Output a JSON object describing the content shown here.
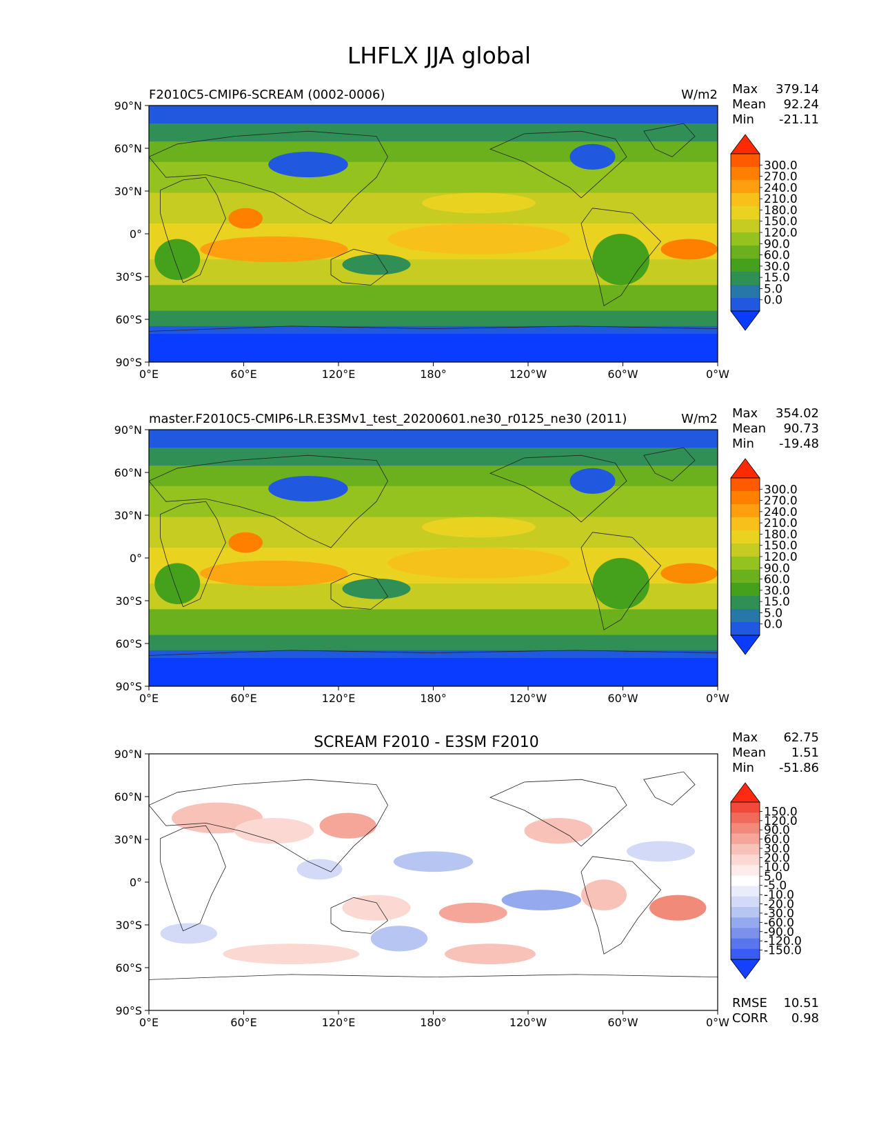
{
  "title": "LHFLX JJA global",
  "x_ticks": [
    "0°E",
    "60°E",
    "120°E",
    "180°",
    "120°W",
    "60°W",
    "0°W"
  ],
  "y_ticks": [
    "90°N",
    "60°N",
    "30°N",
    "0°",
    "30°S",
    "60°S",
    "90°S"
  ],
  "panels": [
    {
      "left_title": "F2010C5-CMIP6-SCREAM (0002-0006)",
      "center_title": "",
      "right_title": "W/m2",
      "stats": [
        {
          "label": "Max",
          "value": "379.14"
        },
        {
          "label": "Mean",
          "value": "92.24"
        },
        {
          "label": "Min",
          "value": "-21.11"
        }
      ],
      "colorbar_labels": [
        "300.0",
        "270.0",
        "240.0",
        "210.0",
        "180.0",
        "150.0",
        "120.0",
        "90.0",
        "60.0",
        "30.0",
        "15.0",
        "5.0",
        "0.0"
      ],
      "colorbar_colors": [
        "#ff2a00",
        "#ff5a00",
        "#ff7f00",
        "#ff9f10",
        "#f7c01b",
        "#e9d220",
        "#c6cc22",
        "#94c21f",
        "#6bb01d",
        "#45a01c",
        "#2f8f55",
        "#2877a9",
        "#2158e0",
        "#0a3cff"
      ]
    },
    {
      "left_title": "master.F2010C5-CMIP6-LR.E3SMv1_test_20200601.ne30_r0125_ne30 (2011)",
      "center_title": "",
      "right_title": "W/m2",
      "stats": [
        {
          "label": "Max",
          "value": "354.02"
        },
        {
          "label": "Mean",
          "value": "90.73"
        },
        {
          "label": "Min",
          "value": "-19.48"
        }
      ],
      "colorbar_labels": [
        "300.0",
        "270.0",
        "240.0",
        "210.0",
        "180.0",
        "150.0",
        "120.0",
        "90.0",
        "60.0",
        "30.0",
        "15.0",
        "5.0",
        "0.0"
      ],
      "colorbar_colors": [
        "#ff2a00",
        "#ff5a00",
        "#ff7f00",
        "#ff9f10",
        "#f7c01b",
        "#e9d220",
        "#c6cc22",
        "#94c21f",
        "#6bb01d",
        "#45a01c",
        "#2f8f55",
        "#2877a9",
        "#2158e0",
        "#0a3cff"
      ]
    },
    {
      "left_title": "",
      "center_title": "SCREAM F2010 - E3SM F2010",
      "right_title": "",
      "stats": [
        {
          "label": "Max",
          "value": "62.75"
        },
        {
          "label": "Mean",
          "value": "1.51"
        },
        {
          "label": "Min",
          "value": "-51.86"
        }
      ],
      "colorbar_labels": [
        "150.0",
        "120.0",
        "90.0",
        "60.0",
        "30.0",
        "20.0",
        "10.0",
        "5.0",
        "-5.0",
        "-10.0",
        "-20.0",
        "-30.0",
        "-60.0",
        "-90.0",
        "-120.0",
        "-150.0"
      ],
      "colorbar_colors": [
        "#ff2a12",
        "#f24a3a",
        "#f06b5a",
        "#f28a7a",
        "#f5a699",
        "#f8c2b8",
        "#fbd9d2",
        "#fdecea",
        "#ffffff",
        "#e9ecfb",
        "#d2daf7",
        "#b7c5f3",
        "#95a9ee",
        "#7b91ea",
        "#5a76ee",
        "#3a5cf5",
        "#1540ff"
      ],
      "footer_stats": [
        {
          "label": "RMSE",
          "value": "10.51"
        },
        {
          "label": "CORR",
          "value": "0.98"
        }
      ]
    }
  ]
}
